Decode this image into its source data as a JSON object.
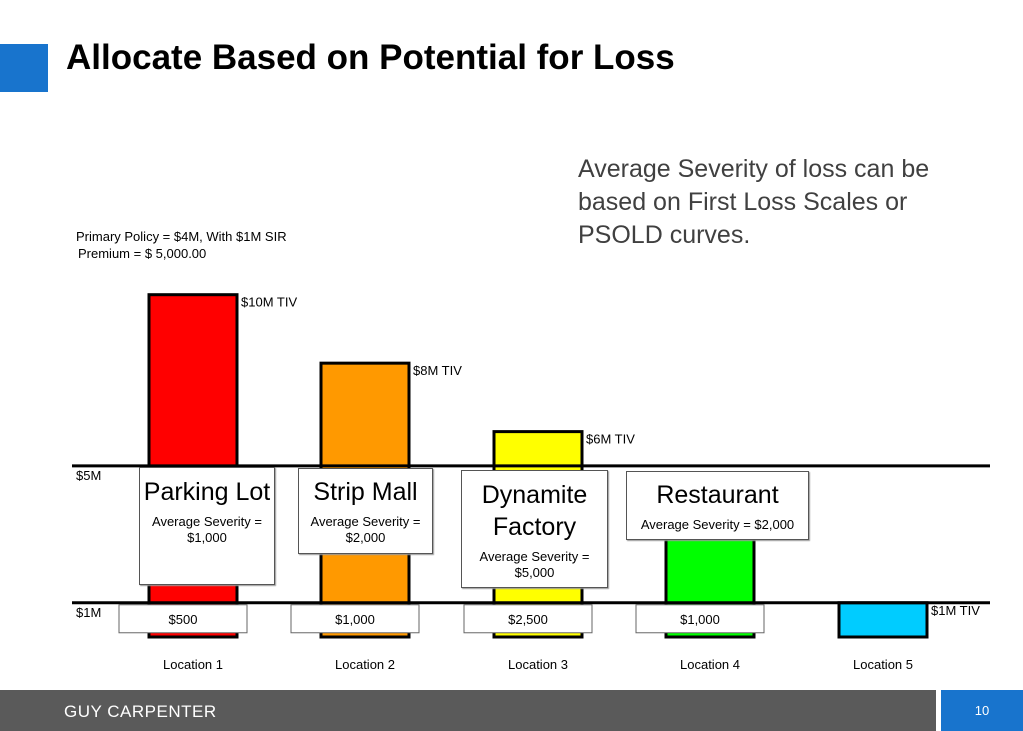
{
  "title": "Allocate Based on Potential for Loss",
  "note": "Average Severity of loss can be based on First Loss Scales or PSOLD curves.",
  "policy": {
    "line1": "Primary Policy = $4M, With $1M SIR",
    "line2": "Premium =   $   5,000.00"
  },
  "chart_data": {
    "type": "bar",
    "categories": [
      "Location 1",
      "Location 2",
      "Location 3",
      "Location 4",
      "Location 5"
    ],
    "values": [
      10,
      8,
      6,
      4.2,
      1
    ],
    "unit": "$M",
    "tiv_labels": [
      "$10M TIV",
      "$8M TIV",
      "$6M TIV",
      "",
      "$1M TIV"
    ],
    "colors": [
      "#FF0000",
      "#FF9900",
      "#FFFF00",
      "#00FF00",
      "#00CCFF"
    ],
    "ylim": [
      0,
      10.4
    ],
    "reference_lines": [
      {
        "value": 5,
        "label": "$5M"
      },
      {
        "value": 1,
        "label": "$1M"
      }
    ],
    "allocations": [
      "$500",
      "$1,000",
      "$2,500",
      "$1,000",
      ""
    ],
    "boxes": [
      {
        "name": "Parking Lot",
        "severity": "Average Severity = $1,000"
      },
      {
        "name": "Strip Mall",
        "severity": "Average Severity = $2,000"
      },
      {
        "name": "Dynamite Factory",
        "severity": "Average Severity = $5,000"
      },
      {
        "name": "Restaurant",
        "severity": "Average Severity = $2,000"
      }
    ]
  },
  "footer": {
    "brand": "GUY CARPENTER",
    "page": "10"
  }
}
